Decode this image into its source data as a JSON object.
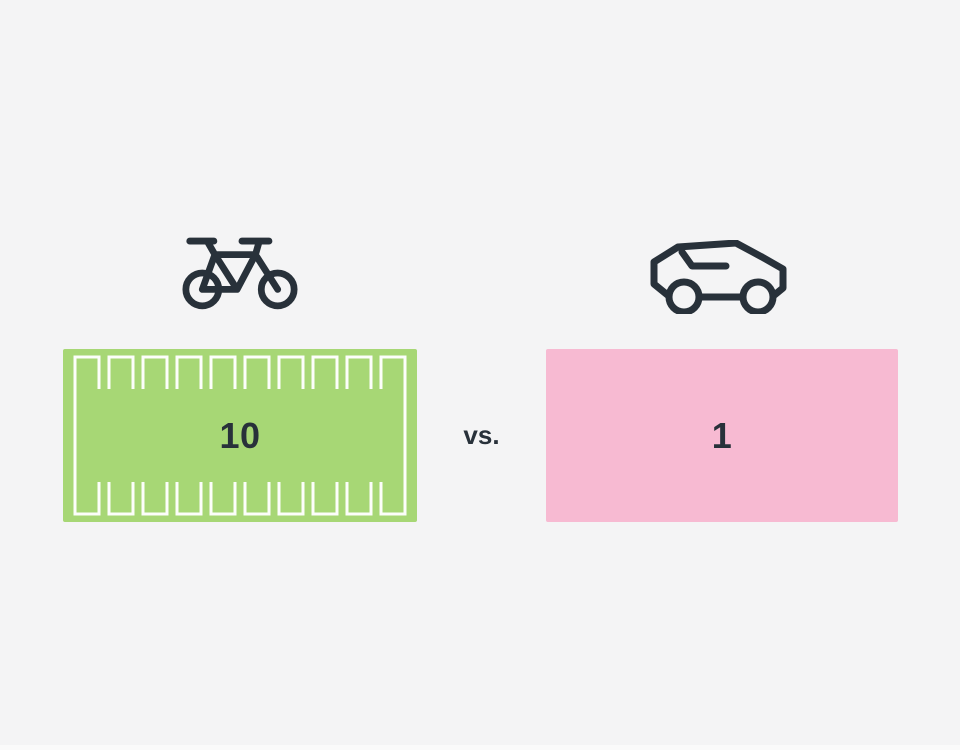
{
  "colors": {
    "bg": "#f4f4f5",
    "ink": "#28313a",
    "green": "#a7d775",
    "pink": "#f7bad2",
    "line": "#ffffff"
  },
  "comparison": {
    "separator": "vs.",
    "bike": {
      "icon": "bicycle-icon",
      "count": "10",
      "slots_per_row": 10,
      "slot_rows": 2
    },
    "car": {
      "icon": "car-icon",
      "count": "1"
    }
  }
}
